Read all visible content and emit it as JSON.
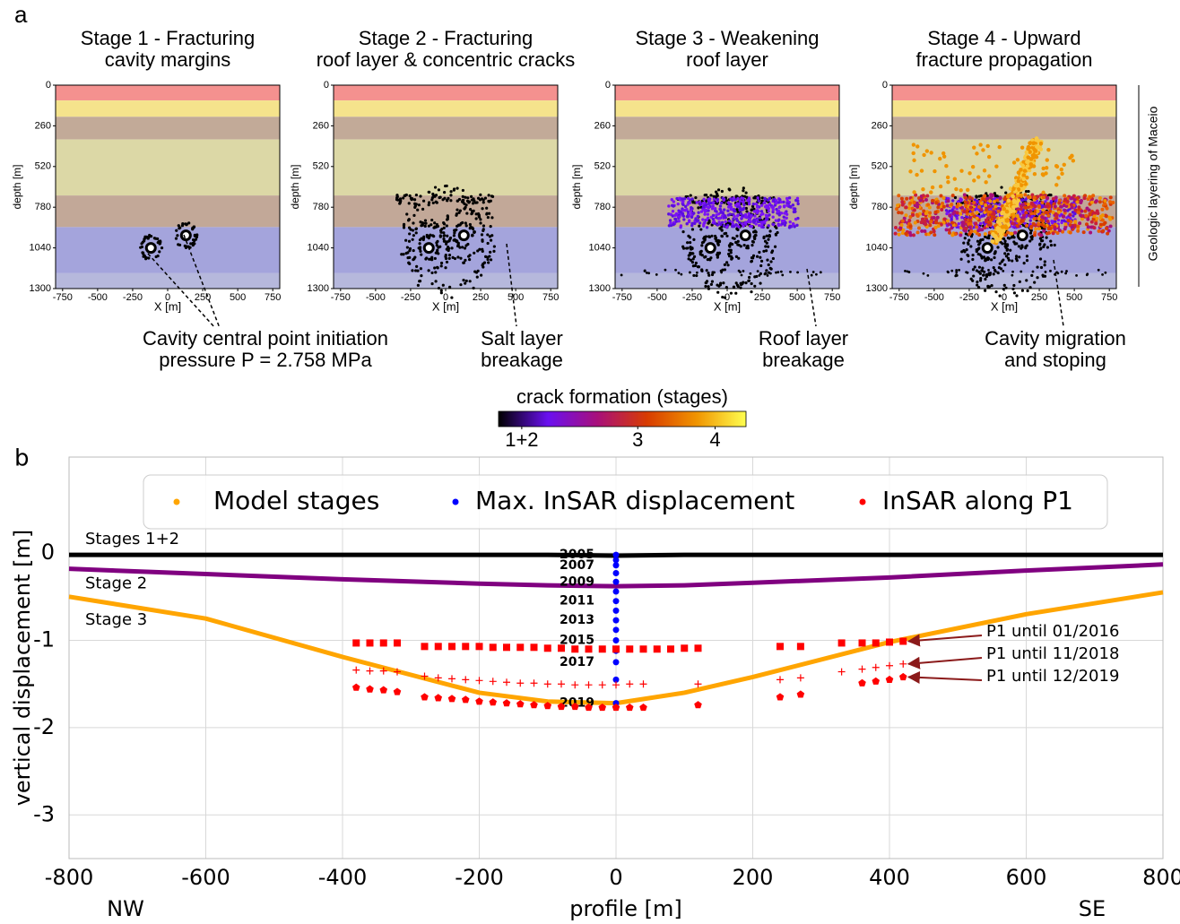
{
  "chart_data": [
    {
      "type": "sections",
      "panel_label": "a",
      "geology_label": "Geologic layering of Maceio",
      "xlabel": "X [m]",
      "ylabel": "depth [m]",
      "xlim": [
        -800,
        800
      ],
      "xticks": [
        -750,
        -500,
        -250,
        0,
        250,
        500,
        750
      ],
      "ylim": [
        0,
        1300
      ],
      "yticks": [
        0,
        260,
        520,
        780,
        1040,
        1300
      ],
      "layers": [
        {
          "top": 0,
          "bottom": 98,
          "color": "#f4918f"
        },
        {
          "top": 98,
          "bottom": 202,
          "color": "#f5e38c"
        },
        {
          "top": 202,
          "bottom": 347,
          "color": "#c2aa98"
        },
        {
          "top": 347,
          "bottom": 705,
          "color": "#dcd8a6"
        },
        {
          "top": 705,
          "bottom": 907,
          "color": "#c2a898"
        },
        {
          "top": 907,
          "bottom": 1202,
          "color": "#a4a4dc"
        },
        {
          "top": 1202,
          "bottom": 1300,
          "color": "#b6b8dc"
        }
      ],
      "cavities": [
        {
          "x": -120,
          "depth": 1040
        },
        {
          "x": 130,
          "depth": 960
        }
      ],
      "panels": [
        {
          "title": [
            "Stage 1 - Fracturing",
            "cavity margins"
          ],
          "annotation": [
            "Cavity central point initiation",
            "pressure P = 2.758 MPa"
          ]
        },
        {
          "title": [
            "Stage 2 - Fracturing",
            "roof layer & concentric cracks"
          ],
          "annotation": [
            "Salt layer",
            "breakage"
          ]
        },
        {
          "title": [
            "Stage 3 - Weakening",
            "roof layer"
          ],
          "annotation": [
            "Roof layer",
            "breakage"
          ]
        },
        {
          "title": [
            "Stage 4 - Upward",
            "fracture propagation"
          ],
          "annotation": [
            "Cavity migration",
            "and stoping"
          ]
        }
      ],
      "colorbar": {
        "label": "crack formation (stages)",
        "colors": [
          "#000000",
          "#6a10f0",
          "#a8107a",
          "#d83c00",
          "#f09400",
          "#ffff50"
        ],
        "lim": [
          1.2,
          4.4
        ],
        "ticks": [
          {
            "value": 1.5,
            "label": "1+2"
          },
          3,
          4
        ]
      }
    },
    {
      "type": "profile",
      "panel_label": "b",
      "xlabel": "profile [m]",
      "ylabel": "vertical displacement  [m]",
      "x_end_labels": [
        "NW",
        "SE"
      ],
      "xlim": [
        -800,
        800
      ],
      "xticks": [
        -800,
        -600,
        -400,
        -200,
        0,
        200,
        400,
        600,
        800
      ],
      "ylim": [
        -3.5,
        1.1
      ],
      "yticks": [
        -3,
        -2,
        -1,
        0
      ],
      "grid": true,
      "legend": [
        {
          "name": "Model stages",
          "color": "#ffa500"
        },
        {
          "name": "Max. InSAR displacement",
          "color": "#0000ff"
        },
        {
          "name": "InSAR along P1",
          "color": "#ff0000"
        }
      ],
      "series": [
        {
          "name": "Stages 1+2",
          "marker": "line",
          "color": "#000000",
          "x": [
            -800,
            -600,
            -400,
            -200,
            -100,
            0,
            100,
            200,
            400,
            600,
            800
          ],
          "values": [
            -0.02,
            -0.02,
            -0.02,
            -0.02,
            -0.02,
            -0.03,
            -0.02,
            -0.02,
            -0.02,
            -0.02,
            -0.02
          ]
        },
        {
          "name": "Stage 2",
          "marker": "line",
          "color": "#800080",
          "x": [
            -800,
            -600,
            -400,
            -200,
            -100,
            0,
            100,
            200,
            400,
            600,
            800
          ],
          "values": [
            -0.18,
            -0.24,
            -0.3,
            -0.35,
            -0.37,
            -0.38,
            -0.37,
            -0.34,
            -0.28,
            -0.2,
            -0.13
          ]
        },
        {
          "name": "Stage 3",
          "marker": "line",
          "color": "#ffa500",
          "x": [
            -800,
            -600,
            -400,
            -200,
            -100,
            0,
            100,
            200,
            400,
            600,
            800
          ],
          "values": [
            -0.5,
            -0.75,
            -1.19,
            -1.6,
            -1.7,
            -1.72,
            -1.6,
            -1.42,
            -1.02,
            -0.7,
            -0.45
          ]
        },
        {
          "marker": "dot",
          "color": "#0000ff",
          "x": [
            0,
            0,
            0,
            0,
            0,
            0,
            0,
            0,
            0,
            0,
            0,
            0,
            0,
            0,
            0
          ],
          "values": [
            -0.02,
            -0.08,
            -0.14,
            -0.23,
            -0.33,
            -0.44,
            -0.55,
            -0.66,
            -0.77,
            -0.88,
            -1.0,
            -1.12,
            -1.25,
            -1.45,
            -1.72
          ],
          "point_labels": [
            "2005",
            null,
            "2007",
            null,
            "2009",
            null,
            "2011",
            null,
            "2013",
            null,
            "2015",
            null,
            "2017",
            null,
            "2019"
          ]
        },
        {
          "name": "P1 until 01/2016",
          "marker": "square",
          "color": "#ff0000",
          "x": [
            -380,
            -360,
            -340,
            -320,
            -280,
            -260,
            -240,
            -220,
            -200,
            -180,
            -160,
            -140,
            -120,
            -100,
            -80,
            -60,
            -40,
            -20,
            0,
            20,
            40,
            60,
            80,
            100,
            120,
            240,
            270,
            330,
            360,
            380,
            400,
            420
          ],
          "values": [
            -1.03,
            -1.03,
            -1.03,
            -1.03,
            -1.07,
            -1.07,
            -1.07,
            -1.07,
            -1.07,
            -1.08,
            -1.08,
            -1.08,
            -1.08,
            -1.09,
            -1.09,
            -1.1,
            -1.1,
            -1.1,
            -1.1,
            -1.1,
            -1.1,
            -1.1,
            -1.1,
            -1.09,
            -1.09,
            -1.07,
            -1.07,
            -1.03,
            -1.03,
            -1.03,
            -1.02,
            -1.01
          ]
        },
        {
          "name": "P1 until 11/2018",
          "marker": "plus",
          "color": "#ff0000",
          "x": [
            -380,
            -360,
            -340,
            -320,
            -280,
            -260,
            -240,
            -220,
            -200,
            -180,
            -160,
            -140,
            -120,
            -100,
            -80,
            -60,
            -40,
            -20,
            0,
            20,
            40,
            120,
            240,
            270,
            330,
            360,
            380,
            400,
            420
          ],
          "values": [
            -1.34,
            -1.35,
            -1.35,
            -1.36,
            -1.41,
            -1.43,
            -1.44,
            -1.45,
            -1.46,
            -1.47,
            -1.48,
            -1.49,
            -1.49,
            -1.5,
            -1.5,
            -1.51,
            -1.51,
            -1.51,
            -1.51,
            -1.5,
            -1.5,
            -1.5,
            -1.45,
            -1.43,
            -1.36,
            -1.33,
            -1.31,
            -1.29,
            -1.27
          ]
        },
        {
          "name": "P1 until 12/2019",
          "marker": "pentagon",
          "color": "#ff0000",
          "x": [
            -380,
            -360,
            -340,
            -320,
            -280,
            -260,
            -240,
            -220,
            -200,
            -180,
            -160,
            -140,
            -120,
            -100,
            -80,
            -60,
            -40,
            -20,
            0,
            20,
            40,
            120,
            240,
            270,
            360,
            380,
            400,
            420
          ],
          "values": [
            -1.54,
            -1.56,
            -1.57,
            -1.59,
            -1.65,
            -1.66,
            -1.67,
            -1.68,
            -1.7,
            -1.71,
            -1.72,
            -1.73,
            -1.74,
            -1.75,
            -1.76,
            -1.76,
            -1.77,
            -1.77,
            -1.77,
            -1.77,
            -1.77,
            -1.74,
            -1.65,
            -1.62,
            -1.49,
            -1.47,
            -1.45,
            -1.42
          ]
        }
      ]
    }
  ]
}
